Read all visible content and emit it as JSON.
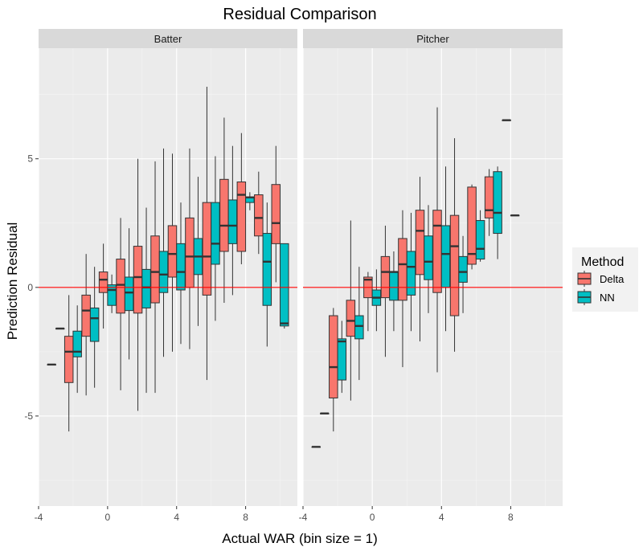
{
  "chart_data": {
    "type": "boxplot",
    "title": "Residual Comparison",
    "xlabel": "Actual WAR (bin size = 1)",
    "ylabel": "Prediction Residual",
    "xlim": [
      -4,
      11
    ],
    "ylim": [
      -8.5,
      9.3
    ],
    "x_ticks": [
      -4,
      0,
      4,
      8
    ],
    "y_ticks": [
      -5,
      0,
      5
    ],
    "reference_line": {
      "y": 0,
      "color": "#ff0000"
    },
    "facets": [
      "Batter",
      "Pitcher"
    ],
    "legend": {
      "title": "Method",
      "position": "right",
      "entries": [
        "Delta",
        "NN"
      ]
    },
    "colors": {
      "Delta": "#f8766d",
      "NN": "#00bfc4"
    },
    "series": [
      {
        "facet": "Batter",
        "boxes": [
          {
            "x": -3,
            "method": "NN",
            "min": -1.6,
            "q1": -1.6,
            "median": -1.6,
            "q3": -1.6,
            "max": -1.6
          },
          {
            "x": -3,
            "method": "Delta",
            "min": -3.0,
            "q1": -3.0,
            "median": -3.0,
            "q3": -3.0,
            "max": -3.0
          },
          {
            "x": -2,
            "method": "Delta",
            "min": -5.6,
            "q1": -3.7,
            "median": -2.5,
            "q3": -1.9,
            "max": -0.3
          },
          {
            "x": -2,
            "method": "NN",
            "min": -4.1,
            "q1": -2.7,
            "median": -2.5,
            "q3": -1.7,
            "max": -0.7
          },
          {
            "x": -1,
            "method": "Delta",
            "min": -4.2,
            "q1": -1.9,
            "median": -0.9,
            "q3": -0.3,
            "max": 1.3
          },
          {
            "x": -1,
            "method": "NN",
            "min": -3.9,
            "q1": -2.1,
            "median": -1.2,
            "q3": -0.8,
            "max": 0.8
          },
          {
            "x": 0,
            "method": "Delta",
            "min": -1.6,
            "q1": -0.2,
            "median": 0.3,
            "q3": 0.6,
            "max": 1.7
          },
          {
            "x": 0,
            "method": "NN",
            "min": -1.0,
            "q1": -0.7,
            "median": -0.1,
            "q3": 0.1,
            "max": 0.5
          },
          {
            "x": 1,
            "method": "Delta",
            "min": -4.0,
            "q1": -1.0,
            "median": 0.1,
            "q3": 1.1,
            "max": 2.7
          },
          {
            "x": 1,
            "method": "NN",
            "min": -2.8,
            "q1": -0.9,
            "median": -0.2,
            "q3": 0.4,
            "max": 2.3
          },
          {
            "x": 2,
            "method": "Delta",
            "min": -4.8,
            "q1": -1.0,
            "median": 0.4,
            "q3": 1.6,
            "max": 5.0
          },
          {
            "x": 2,
            "method": "NN",
            "min": -4.1,
            "q1": -0.8,
            "median": 0.0,
            "q3": 0.7,
            "max": 3.1
          },
          {
            "x": 3,
            "method": "Delta",
            "min": -4.1,
            "q1": -0.6,
            "median": 0.6,
            "q3": 2.0,
            "max": 4.9
          },
          {
            "x": 3,
            "method": "NN",
            "min": -2.7,
            "q1": -0.2,
            "median": 0.5,
            "q3": 1.4,
            "max": 5.4
          },
          {
            "x": 4,
            "method": "Delta",
            "min": -2.5,
            "q1": 0.4,
            "median": 1.3,
            "q3": 2.4,
            "max": 5.2
          },
          {
            "x": 4,
            "method": "NN",
            "min": -2.2,
            "q1": -0.1,
            "median": 0.6,
            "q3": 1.7,
            "max": 3.3
          },
          {
            "x": 5,
            "method": "Delta",
            "min": -2.4,
            "q1": 0.0,
            "median": 1.2,
            "q3": 2.7,
            "max": 5.4
          },
          {
            "x": 5,
            "method": "NN",
            "min": -1.5,
            "q1": 0.5,
            "median": 1.2,
            "q3": 1.9,
            "max": 4.3
          },
          {
            "x": 6,
            "method": "Delta",
            "min": -3.6,
            "q1": -0.3,
            "median": 1.2,
            "q3": 3.3,
            "max": 7.8
          },
          {
            "x": 6,
            "method": "NN",
            "min": -1.3,
            "q1": 0.9,
            "median": 1.7,
            "q3": 3.3,
            "max": 5.1
          },
          {
            "x": 7,
            "method": "Delta",
            "min": -0.6,
            "q1": 1.4,
            "median": 2.4,
            "q3": 4.2,
            "max": 6.6
          },
          {
            "x": 7,
            "method": "NN",
            "min": -0.3,
            "q1": 1.7,
            "median": 2.4,
            "q3": 3.4,
            "max": 5.5
          },
          {
            "x": 8,
            "method": "Delta",
            "min": 0.9,
            "q1": 1.4,
            "median": 3.6,
            "q3": 4.1,
            "max": 6.0
          },
          {
            "x": 8,
            "method": "NN",
            "min": 3.0,
            "q1": 3.3,
            "median": 3.5,
            "q3": 3.5,
            "max": 3.7
          },
          {
            "x": 9,
            "method": "Delta",
            "min": 1.3,
            "q1": 2.0,
            "median": 2.7,
            "q3": 3.6,
            "max": 4.5
          },
          {
            "x": 9,
            "method": "NN",
            "min": -2.3,
            "q1": -0.7,
            "median": 1.0,
            "q3": 2.1,
            "max": 3.3
          },
          {
            "x": 10,
            "method": "Delta",
            "min": 0.2,
            "q1": 1.7,
            "median": 2.5,
            "q3": 4.0,
            "max": 5.5
          },
          {
            "x": 10,
            "method": "NN",
            "min": -1.6,
            "q1": -1.5,
            "median": -1.4,
            "q3": 1.7,
            "max": 1.7
          }
        ]
      },
      {
        "facet": "Pitcher",
        "boxes": [
          {
            "x": -3,
            "method": "Delta",
            "min": -6.2,
            "q1": -6.2,
            "median": -6.2,
            "q3": -6.2,
            "max": -6.2
          },
          {
            "x": -3,
            "method": "NN",
            "min": -4.9,
            "q1": -4.9,
            "median": -4.9,
            "q3": -4.9,
            "max": -4.9
          },
          {
            "x": -2,
            "method": "Delta",
            "min": -5.6,
            "q1": -4.3,
            "median": -3.1,
            "q3": -1.1,
            "max": -0.8
          },
          {
            "x": -2,
            "method": "NN",
            "min": -4.1,
            "q1": -3.6,
            "median": -2.1,
            "q3": -2.0,
            "max": -1.3
          },
          {
            "x": -1,
            "method": "Delta",
            "min": -4.4,
            "q1": -1.9,
            "median": -1.3,
            "q3": -0.5,
            "max": 2.6
          },
          {
            "x": -1,
            "method": "NN",
            "min": -3.6,
            "q1": -2.0,
            "median": -1.5,
            "q3": -1.1,
            "max": 0.8
          },
          {
            "x": 0,
            "method": "Delta",
            "min": -1.7,
            "q1": -0.4,
            "median": 0.3,
            "q3": 0.4,
            "max": 0.6
          },
          {
            "x": 0,
            "method": "NN",
            "min": -1.7,
            "q1": -0.7,
            "median": -0.4,
            "q3": -0.1,
            "max": 0.7
          },
          {
            "x": 1,
            "method": "Delta",
            "min": -2.7,
            "q1": -0.4,
            "median": 0.6,
            "q3": 1.2,
            "max": 2.4
          },
          {
            "x": 1,
            "method": "NN",
            "min": -1.7,
            "q1": -0.5,
            "median": 0.6,
            "q3": 0.6,
            "max": 1.4
          },
          {
            "x": 2,
            "method": "Delta",
            "min": -3.1,
            "q1": -0.5,
            "median": 0.9,
            "q3": 1.9,
            "max": 3.0
          },
          {
            "x": 2,
            "method": "NN",
            "min": -1.7,
            "q1": -0.3,
            "median": 0.8,
            "q3": 1.4,
            "max": 2.9
          },
          {
            "x": 3,
            "method": "Delta",
            "min": -2.1,
            "q1": 0.5,
            "median": 2.2,
            "q3": 3.0,
            "max": 4.3
          },
          {
            "x": 3,
            "method": "NN",
            "min": -1.0,
            "q1": 0.3,
            "median": 1.0,
            "q3": 2.0,
            "max": 3.2
          },
          {
            "x": 4,
            "method": "Delta",
            "min": -3.3,
            "q1": -0.2,
            "median": 2.4,
            "q3": 3.0,
            "max": 7.0
          },
          {
            "x": 4,
            "method": "NN",
            "min": -1.7,
            "q1": 0.0,
            "median": 1.3,
            "q3": 2.4,
            "max": 4.7
          },
          {
            "x": 5,
            "method": "Delta",
            "min": -2.5,
            "q1": -1.1,
            "median": 1.6,
            "q3": 2.8,
            "max": 5.8
          },
          {
            "x": 5,
            "method": "NN",
            "min": -1.0,
            "q1": 0.2,
            "median": 0.6,
            "q3": 1.2,
            "max": 2.0
          },
          {
            "x": 6,
            "method": "Delta",
            "min": 0.7,
            "q1": 0.9,
            "median": 1.3,
            "q3": 3.9,
            "max": 4.0
          },
          {
            "x": 6,
            "method": "NN",
            "min": 1.0,
            "q1": 1.1,
            "median": 1.5,
            "q3": 2.6,
            "max": 3.0
          },
          {
            "x": 7,
            "method": "Delta",
            "min": 2.0,
            "q1": 2.7,
            "median": 3.0,
            "q3": 4.3,
            "max": 4.6
          },
          {
            "x": 7,
            "method": "NN",
            "min": 1.1,
            "q1": 2.1,
            "median": 2.9,
            "q3": 4.5,
            "max": 4.7
          },
          {
            "x": 8,
            "method": "Delta",
            "min": 6.5,
            "q1": 6.5,
            "median": 6.5,
            "q3": 6.5,
            "max": 6.5
          },
          {
            "x": 8,
            "method": "NN",
            "min": 2.8,
            "q1": 2.8,
            "median": 2.8,
            "q3": 2.8,
            "max": 2.8
          }
        ]
      }
    ]
  }
}
